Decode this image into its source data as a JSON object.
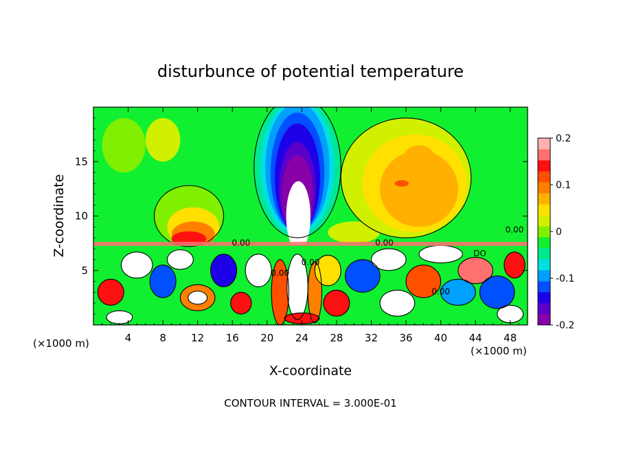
{
  "chart_data": {
    "type": "heatmap",
    "title": "disturbunce of potential temperature",
    "xlabel": "X-coordinate",
    "ylabel": "Z-coordinate",
    "x_unit_left": "(×1000 m)",
    "x_unit_right": "(×1000 m)",
    "footer": "CONTOUR INTERVAL = 3.000E-01",
    "xlim": [
      0,
      50
    ],
    "ylim": [
      0,
      20
    ],
    "x_ticks": [
      "4",
      "8",
      "12",
      "16",
      "20",
      "24",
      "28",
      "32",
      "36",
      "40",
      "44",
      "48"
    ],
    "y_ticks": [
      "5",
      "10",
      "15"
    ],
    "colorbar": {
      "range": [
        -0.2,
        0.2
      ],
      "tick_labels": [
        "0.2",
        "0.1",
        "0",
        "-0.1",
        "-0.2"
      ],
      "colors": [
        "#8800a8",
        "#5a00c8",
        "#1e00e8",
        "#0050ff",
        "#00a0ff",
        "#00e0e0",
        "#00e890",
        "#10f030",
        "#80f000",
        "#d0f000",
        "#ffe000",
        "#ffb000",
        "#ff8000",
        "#ff5000",
        "#ff1010",
        "#ff7070",
        "#ffb0b0"
      ]
    },
    "contour_labels": [
      {
        "text": "0.00",
        "x": 17,
        "y": 7.3
      },
      {
        "text": "0.00",
        "x": 33.5,
        "y": 7.3
      },
      {
        "text": "0.00",
        "x": 48.5,
        "y": 8.5
      },
      {
        "text": "0.00",
        "x": 21.5,
        "y": 4.5
      },
      {
        "text": "0.00",
        "x": 25,
        "y": 5.5
      },
      {
        "text": "0.00",
        "x": 40,
        "y": 2.8
      },
      {
        "text": "DO",
        "x": 44.5,
        "y": 6.3
      }
    ],
    "upper_field": [
      {
        "x": 3.5,
        "y": 16.5,
        "rx": 2.5,
        "ry": 2.5,
        "color": "#80f000"
      },
      {
        "x": 8,
        "y": 17,
        "rx": 2,
        "ry": 2,
        "color": "#d0f000"
      },
      {
        "x": 11,
        "y": 10,
        "rx": 4,
        "ry": 2.8,
        "color": "#80f000"
      },
      {
        "x": 11.5,
        "y": 9,
        "rx": 3,
        "ry": 1.8,
        "color": "#ffe000"
      },
      {
        "x": 11.5,
        "y": 8.3,
        "rx": 2.5,
        "ry": 1.2,
        "color": "#ff8000"
      },
      {
        "x": 11,
        "y": 7.9,
        "rx": 2,
        "ry": 0.7,
        "color": "#ff1010"
      },
      {
        "x": 36,
        "y": 13.5,
        "rx": 7.5,
        "ry": 5.5,
        "color": "#d0f000"
      },
      {
        "x": 37,
        "y": 13,
        "rx": 6,
        "ry": 4.5,
        "color": "#ffe000"
      },
      {
        "x": 37.5,
        "y": 12.5,
        "rx": 4.5,
        "ry": 3.5,
        "color": "#ffb000"
      },
      {
        "x": 37.5,
        "y": 15,
        "rx": 2,
        "ry": 1.5,
        "color": "#ffb000"
      },
      {
        "x": 35.5,
        "y": 13,
        "rx": 0.8,
        "ry": 0.3,
        "color": "#ff5000"
      },
      {
        "x": 30,
        "y": 8.5,
        "rx": 3,
        "ry": 1,
        "color": "#d0f000"
      },
      {
        "x": 47,
        "y": 11,
        "rx": 1.5,
        "ry": 3,
        "color": "#10f030"
      }
    ],
    "plume": [
      {
        "x": 23.5,
        "y": 14.5,
        "rx": 5,
        "ry": 6.5,
        "color": "#00e890"
      },
      {
        "x": 23.5,
        "y": 14.5,
        "rx": 4.3,
        "ry": 6.2,
        "color": "#00e0e0"
      },
      {
        "x": 23.5,
        "y": 14.5,
        "rx": 3.7,
        "ry": 5.9,
        "color": "#00a0ff"
      },
      {
        "x": 23.5,
        "y": 14,
        "rx": 3.1,
        "ry": 5.5,
        "color": "#0050ff"
      },
      {
        "x": 23.5,
        "y": 13.5,
        "rx": 2.6,
        "ry": 5.0,
        "color": "#1e00e8"
      },
      {
        "x": 23.5,
        "y": 12.5,
        "rx": 2.1,
        "ry": 4.3,
        "color": "#5a00c8"
      },
      {
        "x": 23.5,
        "y": 12,
        "rx": 1.8,
        "ry": 3.6,
        "color": "#8800a8"
      },
      {
        "x": 23.6,
        "y": 10,
        "rx": 1.4,
        "ry": 3.2,
        "color": "#ffffff"
      }
    ],
    "lower_field": [
      {
        "x": 2,
        "y": 3,
        "rx": 1.5,
        "ry": 1.2,
        "color": "#ff1010"
      },
      {
        "x": 5,
        "y": 5.5,
        "rx": 1.8,
        "ry": 1.2,
        "color": "#ffffff"
      },
      {
        "x": 8,
        "y": 4,
        "rx": 1.5,
        "ry": 1.5,
        "color": "#0050ff"
      },
      {
        "x": 10,
        "y": 6,
        "rx": 1.5,
        "ry": 0.9,
        "color": "#ffffff"
      },
      {
        "x": 12,
        "y": 2.5,
        "rx": 2,
        "ry": 1.2,
        "color": "#ff8000"
      },
      {
        "x": 12,
        "y": 2.5,
        "rx": 1.1,
        "ry": 0.6,
        "color": "#ffffff"
      },
      {
        "x": 15,
        "y": 5,
        "rx": 1.5,
        "ry": 1.5,
        "color": "#1e00e8"
      },
      {
        "x": 17,
        "y": 2,
        "rx": 1.2,
        "ry": 1,
        "color": "#ff1010"
      },
      {
        "x": 19,
        "y": 5,
        "rx": 1.5,
        "ry": 1.5,
        "color": "#ffffff"
      },
      {
        "x": 21.5,
        "y": 3,
        "rx": 1,
        "ry": 3,
        "color": "#ff5000"
      },
      {
        "x": 23.5,
        "y": 3.5,
        "rx": 1.2,
        "ry": 3,
        "color": "#ffffff"
      },
      {
        "x": 25.5,
        "y": 3,
        "rx": 0.8,
        "ry": 2.8,
        "color": "#ff8000"
      },
      {
        "x": 27,
        "y": 5,
        "rx": 1.5,
        "ry": 1.4,
        "color": "#ffe000"
      },
      {
        "x": 28,
        "y": 2,
        "rx": 1.5,
        "ry": 1.2,
        "color": "#ff1010"
      },
      {
        "x": 31,
        "y": 4.5,
        "rx": 2,
        "ry": 1.5,
        "color": "#0050ff"
      },
      {
        "x": 34,
        "y": 6,
        "rx": 2,
        "ry": 1,
        "color": "#ffffff"
      },
      {
        "x": 35,
        "y": 2,
        "rx": 2,
        "ry": 1.2,
        "color": "#ffffff"
      },
      {
        "x": 38,
        "y": 4,
        "rx": 2,
        "ry": 1.5,
        "color": "#ff5000"
      },
      {
        "x": 40,
        "y": 6.5,
        "rx": 2.5,
        "ry": 0.8,
        "color": "#ffffff"
      },
      {
        "x": 42,
        "y": 3,
        "rx": 2,
        "ry": 1.2,
        "color": "#00a0ff"
      },
      {
        "x": 44,
        "y": 5,
        "rx": 2,
        "ry": 1.2,
        "color": "#ff7070"
      },
      {
        "x": 46.5,
        "y": 3,
        "rx": 2,
        "ry": 1.5,
        "color": "#0050ff"
      },
      {
        "x": 48.5,
        "y": 5.5,
        "rx": 1.2,
        "ry": 1.2,
        "color": "#ff1010"
      },
      {
        "x": 48,
        "y": 1,
        "rx": 1.5,
        "ry": 0.8,
        "color": "#ffffff"
      },
      {
        "x": 3,
        "y": 0.7,
        "rx": 1.5,
        "ry": 0.6,
        "color": "#ffffff"
      },
      {
        "x": 24,
        "y": 0.6,
        "rx": 2,
        "ry": 0.5,
        "color": "#ff1010"
      }
    ]
  }
}
